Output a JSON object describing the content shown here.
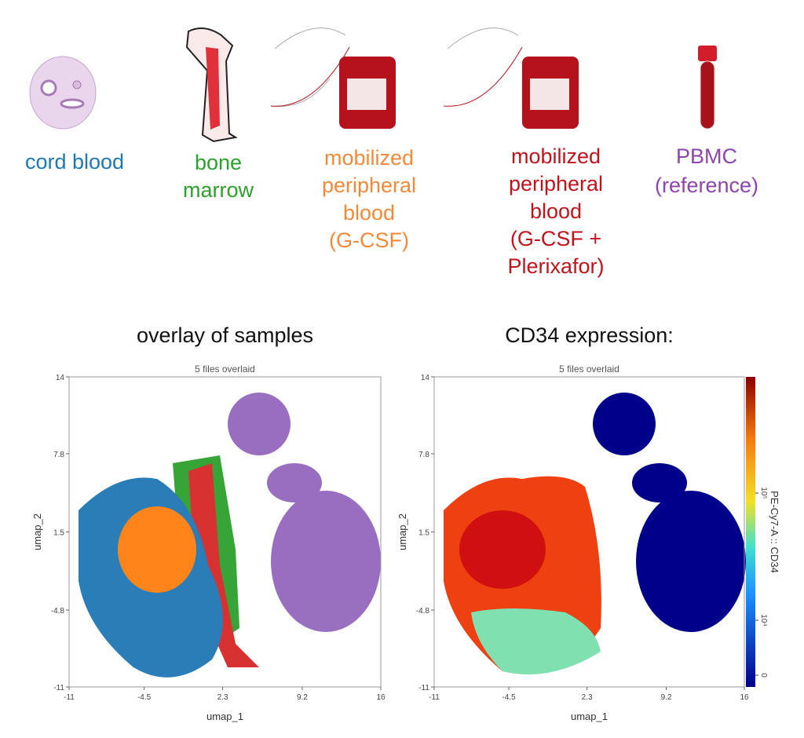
{
  "sources": [
    {
      "lines": [
        "cord blood"
      ],
      "color": "#1f77b4"
    },
    {
      "lines": [
        "bone",
        "marrow"
      ],
      "color": "#2ca02c"
    },
    {
      "lines": [
        "mobilized",
        "peripheral",
        "blood",
        "(G-CSF)"
      ],
      "color": "#f08a3a"
    },
    {
      "lines": [
        "mobilized",
        "peripheral",
        "blood",
        "(G-CSF +",
        "Plerixafor)"
      ],
      "color": "#c0141c"
    },
    {
      "lines": [
        "PBMC",
        "(reference)"
      ],
      "color": "#8e44ad"
    }
  ],
  "panels": [
    {
      "title": "overlay of samples",
      "subtitle": "5 files overlaid",
      "xlabel": "umap_1",
      "ylabel": "umap_2",
      "xlim": [
        -11,
        16
      ],
      "ylim": [
        -11,
        14
      ],
      "xticks": [
        -11,
        -4.5,
        2.3,
        9.2,
        16
      ],
      "yticks": [
        -11,
        -4.8,
        1.5,
        7.8,
        14
      ]
    },
    {
      "title": "CD34 expression:",
      "subtitle": "5 files overlaid",
      "xlabel": "umap_1",
      "ylabel": "umap_2",
      "xlim": [
        -11,
        16
      ],
      "ylim": [
        -11,
        14
      ],
      "xticks": [
        -11,
        -4.5,
        2.3,
        9.2,
        16
      ],
      "yticks": [
        -11,
        -4.8,
        1.5,
        7.8,
        14
      ],
      "colorbar": {
        "label": "PE-Cy7-A :: CD34",
        "ticks": [
          {
            "value": 100000,
            "label": "10⁵"
          },
          {
            "value": 10000,
            "label": "10⁴"
          },
          0
        ]
      }
    }
  ]
}
